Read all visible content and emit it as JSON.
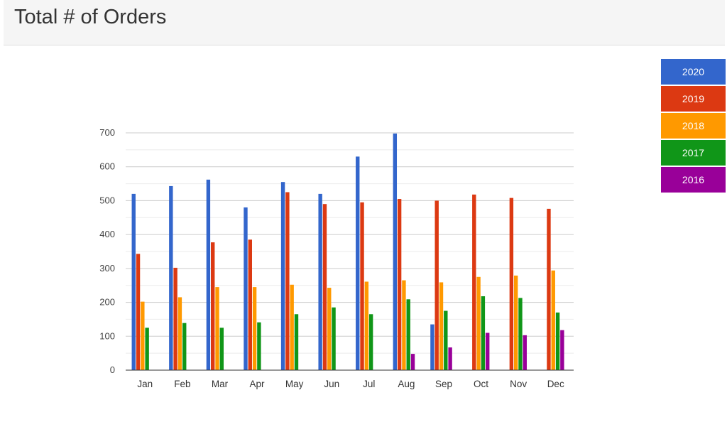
{
  "header": {
    "title": "Total # of Orders"
  },
  "colors": {
    "2020": "#3366cc",
    "2019": "#dc3912",
    "2018": "#ff9900",
    "2017": "#109618",
    "2016": "#990099"
  },
  "chart_data": {
    "type": "bar",
    "categories": [
      "Jan",
      "Feb",
      "Mar",
      "Apr",
      "May",
      "Jun",
      "Jul",
      "Aug",
      "Sep",
      "Oct",
      "Nov",
      "Dec"
    ],
    "series": [
      {
        "name": "2020",
        "values": [
          520,
          543,
          562,
          480,
          555,
          520,
          630,
          698,
          135,
          null,
          null,
          null
        ]
      },
      {
        "name": "2019",
        "values": [
          343,
          302,
          377,
          385,
          525,
          490,
          495,
          505,
          500,
          518,
          508,
          476
        ]
      },
      {
        "name": "2018",
        "values": [
          202,
          215,
          245,
          245,
          252,
          243,
          261,
          265,
          259,
          275,
          279,
          294
        ]
      },
      {
        "name": "2017",
        "values": [
          125,
          139,
          125,
          141,
          165,
          185,
          165,
          209,
          175,
          218,
          213,
          170
        ]
      },
      {
        "name": "2016",
        "values": [
          null,
          null,
          null,
          null,
          null,
          null,
          null,
          48,
          67,
          110,
          103,
          118
        ]
      }
    ],
    "yticks": [
      "0",
      "100",
      "200",
      "300",
      "400",
      "500",
      "600",
      "700"
    ],
    "ylim": [
      0,
      700
    ],
    "grid": true,
    "legend_position": "right"
  }
}
